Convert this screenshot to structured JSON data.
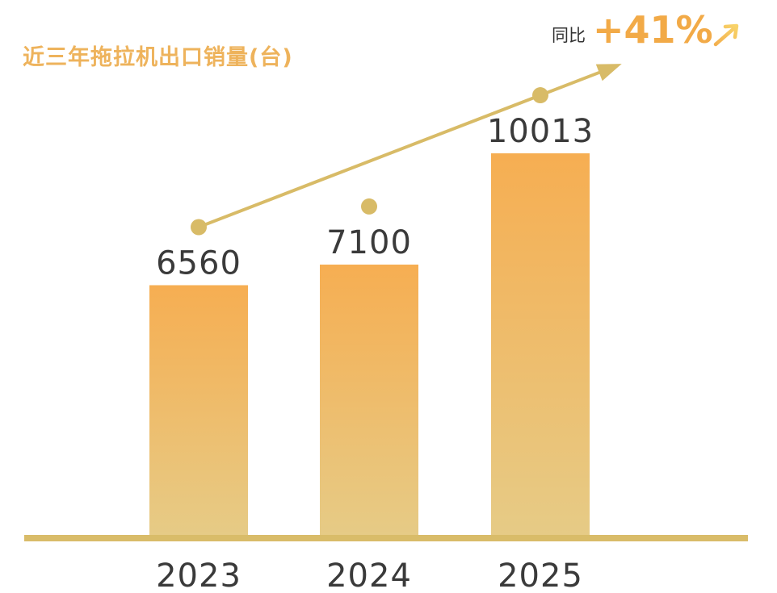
{
  "chart_data": {
    "type": "bar",
    "title": "近三年拖拉机出口销量(台)",
    "categories": [
      "2023",
      "2024",
      "2025"
    ],
    "values": [
      6560,
      7100,
      10013
    ],
    "ylim": [
      0,
      12000
    ],
    "grid": false,
    "legend": "none",
    "annotation": {
      "label": "同比",
      "value": "+41%"
    }
  },
  "colors": {
    "title": "#eeb35c",
    "bar_top": "#f6ae52",
    "bar_bottom": "#e6cb86",
    "axis": "#d9bc69",
    "trend": "#d8bb67",
    "annotation_value": "#f2aa47"
  }
}
